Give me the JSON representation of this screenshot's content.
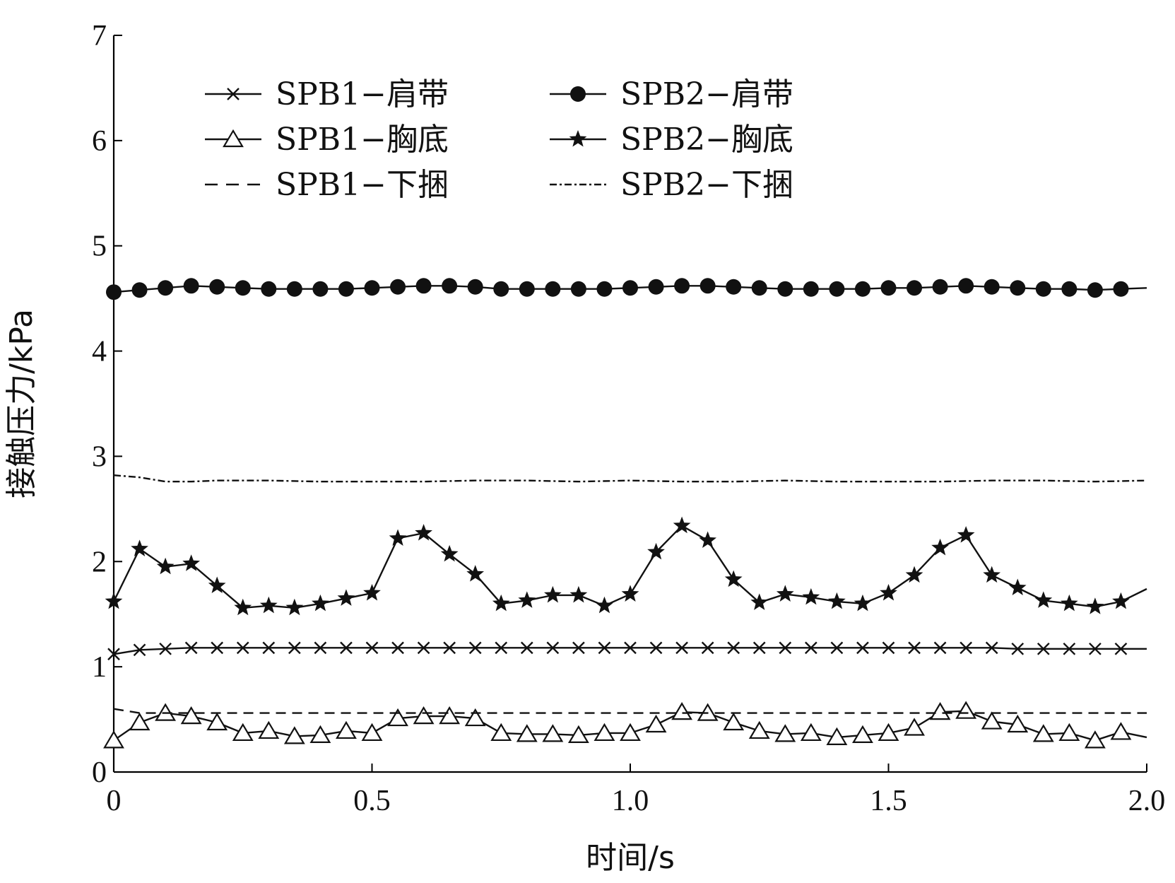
{
  "chart_data": {
    "type": "line",
    "xlabel": "时间/s",
    "ylabel": "接触压力/kPa",
    "xlim": [
      0,
      2.0
    ],
    "ylim": [
      0,
      7
    ],
    "x_ticks": [
      "0",
      "0.5",
      "1.0",
      "1.5",
      "2.0"
    ],
    "x_tick_values": [
      0,
      0.5,
      1.0,
      1.5,
      2.0
    ],
    "y_ticks": [
      "0",
      "1",
      "2",
      "3",
      "4",
      "5",
      "6",
      "7"
    ],
    "y_tick_values": [
      0,
      1,
      2,
      3,
      4,
      5,
      6,
      7
    ],
    "grid": false,
    "legend_position": "top-left",
    "series": [
      {
        "name": "SPB1−肩带",
        "marker": "x",
        "dash": "solid",
        "color": "#111111",
        "x": [
          0,
          0.05,
          0.1,
          0.15,
          0.2,
          0.25,
          0.3,
          0.35,
          0.4,
          0.45,
          0.5,
          0.55,
          0.6,
          0.65,
          0.7,
          0.75,
          0.8,
          0.85,
          0.9,
          0.95,
          1.0,
          1.05,
          1.1,
          1.15,
          1.2,
          1.25,
          1.3,
          1.35,
          1.4,
          1.45,
          1.5,
          1.55,
          1.6,
          1.65,
          1.7,
          1.75,
          1.8,
          1.85,
          1.9,
          1.95,
          2.0
        ],
        "y": [
          1.12,
          1.16,
          1.17,
          1.18,
          1.18,
          1.18,
          1.18,
          1.18,
          1.18,
          1.18,
          1.18,
          1.18,
          1.18,
          1.18,
          1.18,
          1.18,
          1.18,
          1.18,
          1.18,
          1.18,
          1.18,
          1.18,
          1.18,
          1.18,
          1.18,
          1.18,
          1.18,
          1.18,
          1.18,
          1.18,
          1.18,
          1.18,
          1.18,
          1.18,
          1.18,
          1.17,
          1.17,
          1.17,
          1.17,
          1.17,
          1.17
        ]
      },
      {
        "name": "SPB2−肩带",
        "marker": "circle",
        "dash": "solid",
        "color": "#111111",
        "x": [
          0,
          0.05,
          0.1,
          0.15,
          0.2,
          0.25,
          0.3,
          0.35,
          0.4,
          0.45,
          0.5,
          0.55,
          0.6,
          0.65,
          0.7,
          0.75,
          0.8,
          0.85,
          0.9,
          0.95,
          1.0,
          1.05,
          1.1,
          1.15,
          1.2,
          1.25,
          1.3,
          1.35,
          1.4,
          1.45,
          1.5,
          1.55,
          1.6,
          1.65,
          1.7,
          1.75,
          1.8,
          1.85,
          1.9,
          1.95,
          2.0
        ],
        "y": [
          4.56,
          4.58,
          4.6,
          4.62,
          4.61,
          4.6,
          4.59,
          4.59,
          4.59,
          4.59,
          4.6,
          4.61,
          4.62,
          4.62,
          4.61,
          4.59,
          4.59,
          4.59,
          4.59,
          4.59,
          4.6,
          4.61,
          4.62,
          4.62,
          4.61,
          4.6,
          4.59,
          4.59,
          4.59,
          4.59,
          4.6,
          4.6,
          4.61,
          4.62,
          4.61,
          4.6,
          4.59,
          4.59,
          4.58,
          4.59,
          4.6
        ]
      },
      {
        "name": "SPB1−胸底",
        "marker": "triangle",
        "dash": "solid",
        "color": "#111111",
        "x": [
          0,
          0.05,
          0.1,
          0.15,
          0.2,
          0.25,
          0.3,
          0.35,
          0.4,
          0.45,
          0.5,
          0.55,
          0.6,
          0.65,
          0.7,
          0.75,
          0.8,
          0.85,
          0.9,
          0.95,
          1.0,
          1.05,
          1.1,
          1.15,
          1.2,
          1.25,
          1.3,
          1.35,
          1.4,
          1.45,
          1.5,
          1.55,
          1.6,
          1.65,
          1.7,
          1.75,
          1.8,
          1.85,
          1.9,
          1.95,
          2.0
        ],
        "y": [
          0.3,
          0.47,
          0.56,
          0.53,
          0.47,
          0.37,
          0.39,
          0.34,
          0.35,
          0.39,
          0.37,
          0.51,
          0.53,
          0.53,
          0.51,
          0.37,
          0.36,
          0.36,
          0.35,
          0.37,
          0.37,
          0.45,
          0.57,
          0.56,
          0.47,
          0.39,
          0.36,
          0.37,
          0.33,
          0.35,
          0.37,
          0.42,
          0.57,
          0.58,
          0.48,
          0.45,
          0.36,
          0.37,
          0.3,
          0.38,
          0.33
        ]
      },
      {
        "name": "SPB2−胸底",
        "marker": "star",
        "dash": "solid",
        "color": "#111111",
        "x": [
          0,
          0.05,
          0.1,
          0.15,
          0.2,
          0.25,
          0.3,
          0.35,
          0.4,
          0.45,
          0.5,
          0.55,
          0.6,
          0.65,
          0.7,
          0.75,
          0.8,
          0.85,
          0.9,
          0.95,
          1.0,
          1.05,
          1.1,
          1.15,
          1.2,
          1.25,
          1.3,
          1.35,
          1.4,
          1.45,
          1.5,
          1.55,
          1.6,
          1.65,
          1.7,
          1.75,
          1.8,
          1.85,
          1.9,
          1.95,
          2.0
        ],
        "y": [
          1.62,
          2.12,
          1.95,
          1.98,
          1.77,
          1.56,
          1.58,
          1.56,
          1.6,
          1.65,
          1.7,
          2.22,
          2.27,
          2.07,
          1.88,
          1.6,
          1.63,
          1.68,
          1.68,
          1.58,
          1.69,
          2.09,
          2.34,
          2.2,
          1.83,
          1.61,
          1.69,
          1.66,
          1.62,
          1.6,
          1.7,
          1.87,
          2.13,
          2.25,
          1.87,
          1.75,
          1.63,
          1.6,
          1.57,
          1.62,
          1.74
        ]
      },
      {
        "name": "SPB1−下捆",
        "marker": "none",
        "dash": "dashed",
        "color": "#111111",
        "x": [
          0,
          0.05,
          0.1,
          0.2,
          0.4,
          0.6,
          0.8,
          1.0,
          1.2,
          1.4,
          1.6,
          1.8,
          2.0
        ],
        "y": [
          0.6,
          0.56,
          0.56,
          0.56,
          0.56,
          0.56,
          0.56,
          0.56,
          0.56,
          0.56,
          0.56,
          0.56,
          0.56
        ]
      },
      {
        "name": "SPB2−下捆",
        "marker": "none",
        "dash": "dashdot",
        "color": "#111111",
        "x": [
          0,
          0.05,
          0.1,
          0.15,
          0.2,
          0.3,
          0.4,
          0.5,
          0.6,
          0.7,
          0.8,
          0.9,
          1.0,
          1.1,
          1.2,
          1.3,
          1.4,
          1.5,
          1.6,
          1.7,
          1.8,
          1.9,
          2.0
        ],
        "y": [
          2.82,
          2.8,
          2.76,
          2.76,
          2.77,
          2.77,
          2.76,
          2.76,
          2.76,
          2.77,
          2.77,
          2.76,
          2.77,
          2.76,
          2.76,
          2.77,
          2.76,
          2.76,
          2.76,
          2.77,
          2.77,
          2.76,
          2.77
        ]
      }
    ]
  }
}
